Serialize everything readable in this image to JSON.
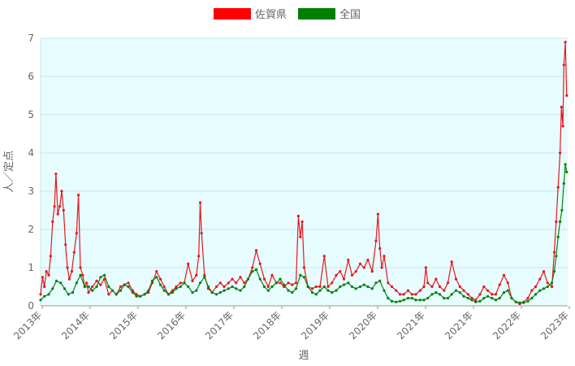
{
  "chart_data": {
    "type": "line",
    "xlabel": "週",
    "ylabel": "人／定点",
    "ylim": [
      0,
      7
    ],
    "yticks": [
      0,
      1,
      2,
      3,
      4,
      5,
      6,
      7
    ],
    "xticks": [
      "2013年",
      "2014年",
      "2015年",
      "2016年",
      "2017年",
      "2018年",
      "2019年",
      "2020年",
      "2021年",
      "2021年",
      "2022年",
      "2023年"
    ],
    "xrange": [
      2013.0,
      2024.0
    ],
    "grid": true,
    "legend_position": "top",
    "background_color": "#e6fcff",
    "series": [
      {
        "name": "佐賀県",
        "color": "#e8161b",
        "points": [
          [
            2013.0,
            0.3
          ],
          [
            2013.04,
            0.75
          ],
          [
            2013.08,
            0.5
          ],
          [
            2013.12,
            0.9
          ],
          [
            2013.17,
            0.8
          ],
          [
            2013.21,
            1.3
          ],
          [
            2013.25,
            2.2
          ],
          [
            2013.29,
            2.6
          ],
          [
            2013.32,
            3.45
          ],
          [
            2013.36,
            2.4
          ],
          [
            2013.4,
            2.6
          ],
          [
            2013.44,
            3.0
          ],
          [
            2013.48,
            2.5
          ],
          [
            2013.52,
            1.6
          ],
          [
            2013.56,
            1.0
          ],
          [
            2013.6,
            0.7
          ],
          [
            2013.65,
            0.9
          ],
          [
            2013.7,
            1.4
          ],
          [
            2013.75,
            1.9
          ],
          [
            2013.79,
            2.9
          ],
          [
            2013.83,
            1.0
          ],
          [
            2013.88,
            0.8
          ],
          [
            2013.92,
            0.5
          ],
          [
            2013.96,
            0.6
          ],
          [
            2014.0,
            0.35
          ],
          [
            2014.08,
            0.5
          ],
          [
            2014.17,
            0.65
          ],
          [
            2014.25,
            0.55
          ],
          [
            2014.33,
            0.7
          ],
          [
            2014.42,
            0.3
          ],
          [
            2014.5,
            0.4
          ],
          [
            2014.58,
            0.3
          ],
          [
            2014.67,
            0.5
          ],
          [
            2014.75,
            0.55
          ],
          [
            2014.83,
            0.6
          ],
          [
            2014.92,
            0.4
          ],
          [
            2015.0,
            0.3
          ],
          [
            2015.08,
            0.25
          ],
          [
            2015.17,
            0.3
          ],
          [
            2015.25,
            0.35
          ],
          [
            2015.33,
            0.6
          ],
          [
            2015.42,
            0.9
          ],
          [
            2015.5,
            0.7
          ],
          [
            2015.58,
            0.5
          ],
          [
            2015.67,
            0.3
          ],
          [
            2015.75,
            0.4
          ],
          [
            2015.83,
            0.5
          ],
          [
            2015.92,
            0.6
          ],
          [
            2016.0,
            0.6
          ],
          [
            2016.08,
            1.1
          ],
          [
            2016.17,
            0.65
          ],
          [
            2016.25,
            0.8
          ],
          [
            2016.3,
            1.3
          ],
          [
            2016.33,
            2.7
          ],
          [
            2016.36,
            1.9
          ],
          [
            2016.42,
            0.8
          ],
          [
            2016.5,
            0.45
          ],
          [
            2016.58,
            0.35
          ],
          [
            2016.67,
            0.5
          ],
          [
            2016.75,
            0.6
          ],
          [
            2016.83,
            0.5
          ],
          [
            2016.92,
            0.6
          ],
          [
            2017.0,
            0.7
          ],
          [
            2017.08,
            0.6
          ],
          [
            2017.17,
            0.75
          ],
          [
            2017.25,
            0.6
          ],
          [
            2017.33,
            0.7
          ],
          [
            2017.42,
            1.0
          ],
          [
            2017.5,
            1.45
          ],
          [
            2017.58,
            1.1
          ],
          [
            2017.67,
            0.7
          ],
          [
            2017.75,
            0.5
          ],
          [
            2017.83,
            0.8
          ],
          [
            2017.92,
            0.6
          ],
          [
            2018.0,
            0.6
          ],
          [
            2018.08,
            0.5
          ],
          [
            2018.17,
            0.6
          ],
          [
            2018.25,
            0.55
          ],
          [
            2018.33,
            0.6
          ],
          [
            2018.38,
            2.35
          ],
          [
            2018.42,
            1.8
          ],
          [
            2018.46,
            2.2
          ],
          [
            2018.5,
            1.0
          ],
          [
            2018.58,
            0.5
          ],
          [
            2018.67,
            0.45
          ],
          [
            2018.75,
            0.5
          ],
          [
            2018.83,
            0.5
          ],
          [
            2018.92,
            1.3
          ],
          [
            2019.0,
            0.5
          ],
          [
            2019.08,
            0.6
          ],
          [
            2019.17,
            0.8
          ],
          [
            2019.25,
            0.9
          ],
          [
            2019.33,
            0.7
          ],
          [
            2019.42,
            1.2
          ],
          [
            2019.5,
            0.8
          ],
          [
            2019.58,
            0.9
          ],
          [
            2019.67,
            1.1
          ],
          [
            2019.75,
            1.0
          ],
          [
            2019.83,
            1.2
          ],
          [
            2019.92,
            0.9
          ],
          [
            2020.0,
            1.7
          ],
          [
            2020.04,
            2.4
          ],
          [
            2020.08,
            1.5
          ],
          [
            2020.12,
            1.0
          ],
          [
            2020.17,
            1.3
          ],
          [
            2020.25,
            0.6
          ],
          [
            2020.33,
            0.5
          ],
          [
            2020.42,
            0.4
          ],
          [
            2020.5,
            0.3
          ],
          [
            2020.58,
            0.3
          ],
          [
            2020.67,
            0.4
          ],
          [
            2020.75,
            0.3
          ],
          [
            2020.83,
            0.3
          ],
          [
            2020.92,
            0.4
          ],
          [
            2021.0,
            0.5
          ],
          [
            2021.04,
            1.0
          ],
          [
            2021.08,
            0.6
          ],
          [
            2021.17,
            0.5
          ],
          [
            2021.25,
            0.7
          ],
          [
            2021.33,
            0.5
          ],
          [
            2021.42,
            0.4
          ],
          [
            2021.5,
            0.6
          ],
          [
            2021.58,
            1.15
          ],
          [
            2021.67,
            0.7
          ],
          [
            2021.75,
            0.5
          ],
          [
            2021.83,
            0.4
          ],
          [
            2021.92,
            0.3
          ],
          [
            2022.0,
            0.2
          ],
          [
            2022.08,
            0.15
          ],
          [
            2022.17,
            0.3
          ],
          [
            2022.25,
            0.5
          ],
          [
            2022.33,
            0.4
          ],
          [
            2022.42,
            0.3
          ],
          [
            2022.5,
            0.3
          ],
          [
            2022.58,
            0.55
          ],
          [
            2022.67,
            0.8
          ],
          [
            2022.75,
            0.6
          ],
          [
            2022.83,
            0.2
          ],
          [
            2022.92,
            0.1
          ],
          [
            2023.0,
            0.05
          ],
          [
            2023.08,
            0.1
          ],
          [
            2023.17,
            0.2
          ],
          [
            2023.25,
            0.4
          ],
          [
            2023.33,
            0.5
          ],
          [
            2023.42,
            0.7
          ],
          [
            2023.5,
            0.9
          ],
          [
            2023.58,
            0.6
          ],
          [
            2023.67,
            0.5
          ],
          [
            2023.72,
            1.4
          ],
          [
            2023.76,
            2.2
          ],
          [
            2023.8,
            3.1
          ],
          [
            2023.84,
            4.0
          ],
          [
            2023.87,
            5.2
          ],
          [
            2023.9,
            4.7
          ],
          [
            2023.92,
            6.3
          ],
          [
            2023.95,
            6.9
          ],
          [
            2023.98,
            5.5
          ]
        ]
      },
      {
        "name": "全国",
        "color": "#088008",
        "points": [
          [
            2013.0,
            0.15
          ],
          [
            2013.08,
            0.25
          ],
          [
            2013.17,
            0.3
          ],
          [
            2013.25,
            0.45
          ],
          [
            2013.33,
            0.65
          ],
          [
            2013.42,
            0.6
          ],
          [
            2013.5,
            0.45
          ],
          [
            2013.58,
            0.3
          ],
          [
            2013.67,
            0.35
          ],
          [
            2013.75,
            0.6
          ],
          [
            2013.83,
            0.8
          ],
          [
            2013.92,
            0.5
          ],
          [
            2014.0,
            0.5
          ],
          [
            2014.08,
            0.4
          ],
          [
            2014.17,
            0.5
          ],
          [
            2014.25,
            0.75
          ],
          [
            2014.33,
            0.8
          ],
          [
            2014.42,
            0.5
          ],
          [
            2014.5,
            0.4
          ],
          [
            2014.58,
            0.3
          ],
          [
            2014.67,
            0.4
          ],
          [
            2014.75,
            0.55
          ],
          [
            2014.83,
            0.5
          ],
          [
            2014.92,
            0.35
          ],
          [
            2015.0,
            0.25
          ],
          [
            2015.08,
            0.25
          ],
          [
            2015.17,
            0.3
          ],
          [
            2015.25,
            0.4
          ],
          [
            2015.33,
            0.65
          ],
          [
            2015.42,
            0.75
          ],
          [
            2015.5,
            0.55
          ],
          [
            2015.58,
            0.4
          ],
          [
            2015.67,
            0.3
          ],
          [
            2015.75,
            0.35
          ],
          [
            2015.83,
            0.45
          ],
          [
            2015.92,
            0.5
          ],
          [
            2016.0,
            0.6
          ],
          [
            2016.08,
            0.5
          ],
          [
            2016.17,
            0.35
          ],
          [
            2016.25,
            0.4
          ],
          [
            2016.33,
            0.6
          ],
          [
            2016.42,
            0.75
          ],
          [
            2016.5,
            0.5
          ],
          [
            2016.58,
            0.35
          ],
          [
            2016.67,
            0.3
          ],
          [
            2016.75,
            0.35
          ],
          [
            2016.83,
            0.4
          ],
          [
            2016.92,
            0.45
          ],
          [
            2017.0,
            0.5
          ],
          [
            2017.08,
            0.45
          ],
          [
            2017.17,
            0.4
          ],
          [
            2017.25,
            0.5
          ],
          [
            2017.33,
            0.7
          ],
          [
            2017.42,
            0.9
          ],
          [
            2017.5,
            0.95
          ],
          [
            2017.58,
            0.7
          ],
          [
            2017.67,
            0.5
          ],
          [
            2017.75,
            0.4
          ],
          [
            2017.83,
            0.5
          ],
          [
            2017.92,
            0.6
          ],
          [
            2018.0,
            0.7
          ],
          [
            2018.08,
            0.55
          ],
          [
            2018.17,
            0.4
          ],
          [
            2018.25,
            0.35
          ],
          [
            2018.33,
            0.45
          ],
          [
            2018.42,
            0.8
          ],
          [
            2018.5,
            0.75
          ],
          [
            2018.58,
            0.5
          ],
          [
            2018.67,
            0.35
          ],
          [
            2018.75,
            0.3
          ],
          [
            2018.83,
            0.4
          ],
          [
            2018.92,
            0.5
          ],
          [
            2019.0,
            0.4
          ],
          [
            2019.08,
            0.35
          ],
          [
            2019.17,
            0.4
          ],
          [
            2019.25,
            0.5
          ],
          [
            2019.33,
            0.55
          ],
          [
            2019.42,
            0.6
          ],
          [
            2019.5,
            0.5
          ],
          [
            2019.58,
            0.45
          ],
          [
            2019.67,
            0.5
          ],
          [
            2019.75,
            0.55
          ],
          [
            2019.83,
            0.5
          ],
          [
            2019.92,
            0.45
          ],
          [
            2020.0,
            0.6
          ],
          [
            2020.08,
            0.65
          ],
          [
            2020.17,
            0.4
          ],
          [
            2020.25,
            0.2
          ],
          [
            2020.33,
            0.12
          ],
          [
            2020.42,
            0.1
          ],
          [
            2020.5,
            0.12
          ],
          [
            2020.58,
            0.15
          ],
          [
            2020.67,
            0.2
          ],
          [
            2020.75,
            0.2
          ],
          [
            2020.83,
            0.15
          ],
          [
            2020.92,
            0.15
          ],
          [
            2021.0,
            0.15
          ],
          [
            2021.08,
            0.2
          ],
          [
            2021.17,
            0.3
          ],
          [
            2021.25,
            0.35
          ],
          [
            2021.33,
            0.3
          ],
          [
            2021.42,
            0.2
          ],
          [
            2021.5,
            0.2
          ],
          [
            2021.58,
            0.3
          ],
          [
            2021.67,
            0.4
          ],
          [
            2021.75,
            0.35
          ],
          [
            2021.83,
            0.25
          ],
          [
            2021.92,
            0.2
          ],
          [
            2022.0,
            0.15
          ],
          [
            2022.08,
            0.1
          ],
          [
            2022.17,
            0.12
          ],
          [
            2022.25,
            0.2
          ],
          [
            2022.33,
            0.25
          ],
          [
            2022.42,
            0.2
          ],
          [
            2022.5,
            0.15
          ],
          [
            2022.58,
            0.2
          ],
          [
            2022.67,
            0.35
          ],
          [
            2022.75,
            0.4
          ],
          [
            2022.83,
            0.2
          ],
          [
            2022.92,
            0.1
          ],
          [
            2023.0,
            0.08
          ],
          [
            2023.08,
            0.08
          ],
          [
            2023.17,
            0.12
          ],
          [
            2023.25,
            0.2
          ],
          [
            2023.33,
            0.3
          ],
          [
            2023.42,
            0.4
          ],
          [
            2023.5,
            0.45
          ],
          [
            2023.58,
            0.5
          ],
          [
            2023.67,
            0.6
          ],
          [
            2023.72,
            0.9
          ],
          [
            2023.76,
            1.3
          ],
          [
            2023.8,
            1.8
          ],
          [
            2023.84,
            2.2
          ],
          [
            2023.88,
            2.5
          ],
          [
            2023.92,
            3.2
          ],
          [
            2023.95,
            3.7
          ],
          [
            2023.98,
            3.5
          ]
        ]
      }
    ]
  }
}
